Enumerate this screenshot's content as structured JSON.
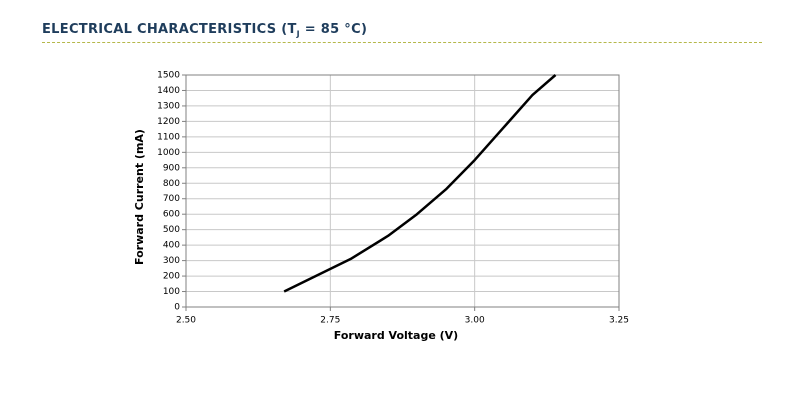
{
  "chart_data": {
    "type": "line",
    "title_prefix": "ELECTRICAL CHARACTERISTICS (T",
    "title_sub": "J",
    "title_suffix": " = 85 °C)",
    "x_label": "Forward Voltage (V)",
    "y_label": "Forward Current (mA)",
    "x": [
      2.67,
      2.785,
      2.85,
      2.9,
      2.95,
      3.0,
      3.05,
      3.1,
      3.14
    ],
    "series": [
      {
        "color": "#000000",
        "values": [
          100,
          310,
          460,
          600,
          760,
          950,
          1160,
          1370,
          1500
        ]
      }
    ],
    "xlim": [
      2.5,
      3.25
    ],
    "xticks": [
      {
        "value": 2.5,
        "label": "2.50"
      },
      {
        "value": 2.75,
        "label": "2.75"
      },
      {
        "value": 3.0,
        "label": "3.00"
      },
      {
        "value": 3.25,
        "label": "3.25"
      }
    ],
    "ylim": [
      0,
      1500
    ],
    "yticks": [
      0,
      100,
      200,
      300,
      400,
      500,
      600,
      700,
      800,
      900,
      1000,
      1100,
      1200,
      1300,
      1400,
      1500
    ],
    "grid": true
  }
}
